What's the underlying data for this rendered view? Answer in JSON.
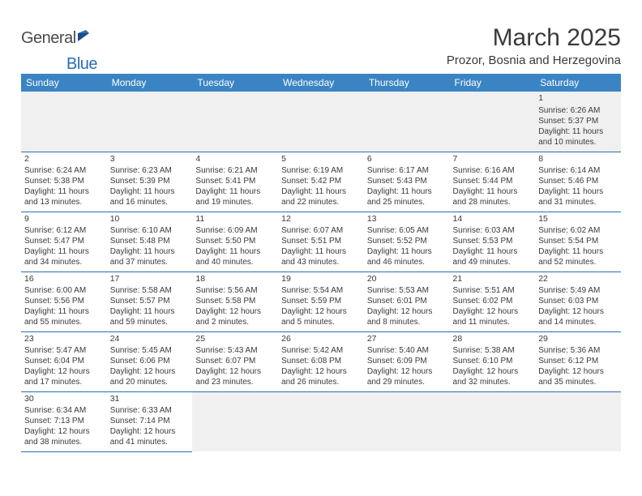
{
  "logo": {
    "part1": "General",
    "part2": "Blue"
  },
  "title": "March 2025",
  "location": "Prozor, Bosnia and Herzegovina",
  "colors": {
    "header_bg": "#3b84c4",
    "header_text": "#ffffff",
    "row_border": "#2a6db8",
    "empty_bg": "#f0f0f0",
    "text": "#3a3a3a",
    "logo_blue": "#2a6db8"
  },
  "daynames": [
    "Sunday",
    "Monday",
    "Tuesday",
    "Wednesday",
    "Thursday",
    "Friday",
    "Saturday"
  ],
  "weeks": [
    [
      null,
      null,
      null,
      null,
      null,
      null,
      {
        "n": "1",
        "sr": "Sunrise: 6:26 AM",
        "ss": "Sunset: 5:37 PM",
        "d1": "Daylight: 11 hours",
        "d2": "and 10 minutes."
      }
    ],
    [
      {
        "n": "2",
        "sr": "Sunrise: 6:24 AM",
        "ss": "Sunset: 5:38 PM",
        "d1": "Daylight: 11 hours",
        "d2": "and 13 minutes."
      },
      {
        "n": "3",
        "sr": "Sunrise: 6:23 AM",
        "ss": "Sunset: 5:39 PM",
        "d1": "Daylight: 11 hours",
        "d2": "and 16 minutes."
      },
      {
        "n": "4",
        "sr": "Sunrise: 6:21 AM",
        "ss": "Sunset: 5:41 PM",
        "d1": "Daylight: 11 hours",
        "d2": "and 19 minutes."
      },
      {
        "n": "5",
        "sr": "Sunrise: 6:19 AM",
        "ss": "Sunset: 5:42 PM",
        "d1": "Daylight: 11 hours",
        "d2": "and 22 minutes."
      },
      {
        "n": "6",
        "sr": "Sunrise: 6:17 AM",
        "ss": "Sunset: 5:43 PM",
        "d1": "Daylight: 11 hours",
        "d2": "and 25 minutes."
      },
      {
        "n": "7",
        "sr": "Sunrise: 6:16 AM",
        "ss": "Sunset: 5:44 PM",
        "d1": "Daylight: 11 hours",
        "d2": "and 28 minutes."
      },
      {
        "n": "8",
        "sr": "Sunrise: 6:14 AM",
        "ss": "Sunset: 5:46 PM",
        "d1": "Daylight: 11 hours",
        "d2": "and 31 minutes."
      }
    ],
    [
      {
        "n": "9",
        "sr": "Sunrise: 6:12 AM",
        "ss": "Sunset: 5:47 PM",
        "d1": "Daylight: 11 hours",
        "d2": "and 34 minutes."
      },
      {
        "n": "10",
        "sr": "Sunrise: 6:10 AM",
        "ss": "Sunset: 5:48 PM",
        "d1": "Daylight: 11 hours",
        "d2": "and 37 minutes."
      },
      {
        "n": "11",
        "sr": "Sunrise: 6:09 AM",
        "ss": "Sunset: 5:50 PM",
        "d1": "Daylight: 11 hours",
        "d2": "and 40 minutes."
      },
      {
        "n": "12",
        "sr": "Sunrise: 6:07 AM",
        "ss": "Sunset: 5:51 PM",
        "d1": "Daylight: 11 hours",
        "d2": "and 43 minutes."
      },
      {
        "n": "13",
        "sr": "Sunrise: 6:05 AM",
        "ss": "Sunset: 5:52 PM",
        "d1": "Daylight: 11 hours",
        "d2": "and 46 minutes."
      },
      {
        "n": "14",
        "sr": "Sunrise: 6:03 AM",
        "ss": "Sunset: 5:53 PM",
        "d1": "Daylight: 11 hours",
        "d2": "and 49 minutes."
      },
      {
        "n": "15",
        "sr": "Sunrise: 6:02 AM",
        "ss": "Sunset: 5:54 PM",
        "d1": "Daylight: 11 hours",
        "d2": "and 52 minutes."
      }
    ],
    [
      {
        "n": "16",
        "sr": "Sunrise: 6:00 AM",
        "ss": "Sunset: 5:56 PM",
        "d1": "Daylight: 11 hours",
        "d2": "and 55 minutes."
      },
      {
        "n": "17",
        "sr": "Sunrise: 5:58 AM",
        "ss": "Sunset: 5:57 PM",
        "d1": "Daylight: 11 hours",
        "d2": "and 59 minutes."
      },
      {
        "n": "18",
        "sr": "Sunrise: 5:56 AM",
        "ss": "Sunset: 5:58 PM",
        "d1": "Daylight: 12 hours",
        "d2": "and 2 minutes."
      },
      {
        "n": "19",
        "sr": "Sunrise: 5:54 AM",
        "ss": "Sunset: 5:59 PM",
        "d1": "Daylight: 12 hours",
        "d2": "and 5 minutes."
      },
      {
        "n": "20",
        "sr": "Sunrise: 5:53 AM",
        "ss": "Sunset: 6:01 PM",
        "d1": "Daylight: 12 hours",
        "d2": "and 8 minutes."
      },
      {
        "n": "21",
        "sr": "Sunrise: 5:51 AM",
        "ss": "Sunset: 6:02 PM",
        "d1": "Daylight: 12 hours",
        "d2": "and 11 minutes."
      },
      {
        "n": "22",
        "sr": "Sunrise: 5:49 AM",
        "ss": "Sunset: 6:03 PM",
        "d1": "Daylight: 12 hours",
        "d2": "and 14 minutes."
      }
    ],
    [
      {
        "n": "23",
        "sr": "Sunrise: 5:47 AM",
        "ss": "Sunset: 6:04 PM",
        "d1": "Daylight: 12 hours",
        "d2": "and 17 minutes."
      },
      {
        "n": "24",
        "sr": "Sunrise: 5:45 AM",
        "ss": "Sunset: 6:06 PM",
        "d1": "Daylight: 12 hours",
        "d2": "and 20 minutes."
      },
      {
        "n": "25",
        "sr": "Sunrise: 5:43 AM",
        "ss": "Sunset: 6:07 PM",
        "d1": "Daylight: 12 hours",
        "d2": "and 23 minutes."
      },
      {
        "n": "26",
        "sr": "Sunrise: 5:42 AM",
        "ss": "Sunset: 6:08 PM",
        "d1": "Daylight: 12 hours",
        "d2": "and 26 minutes."
      },
      {
        "n": "27",
        "sr": "Sunrise: 5:40 AM",
        "ss": "Sunset: 6:09 PM",
        "d1": "Daylight: 12 hours",
        "d2": "and 29 minutes."
      },
      {
        "n": "28",
        "sr": "Sunrise: 5:38 AM",
        "ss": "Sunset: 6:10 PM",
        "d1": "Daylight: 12 hours",
        "d2": "and 32 minutes."
      },
      {
        "n": "29",
        "sr": "Sunrise: 5:36 AM",
        "ss": "Sunset: 6:12 PM",
        "d1": "Daylight: 12 hours",
        "d2": "and 35 minutes."
      }
    ],
    [
      {
        "n": "30",
        "sr": "Sunrise: 6:34 AM",
        "ss": "Sunset: 7:13 PM",
        "d1": "Daylight: 12 hours",
        "d2": "and 38 minutes."
      },
      {
        "n": "31",
        "sr": "Sunrise: 6:33 AM",
        "ss": "Sunset: 7:14 PM",
        "d1": "Daylight: 12 hours",
        "d2": "and 41 minutes."
      },
      null,
      null,
      null,
      null,
      null
    ]
  ]
}
